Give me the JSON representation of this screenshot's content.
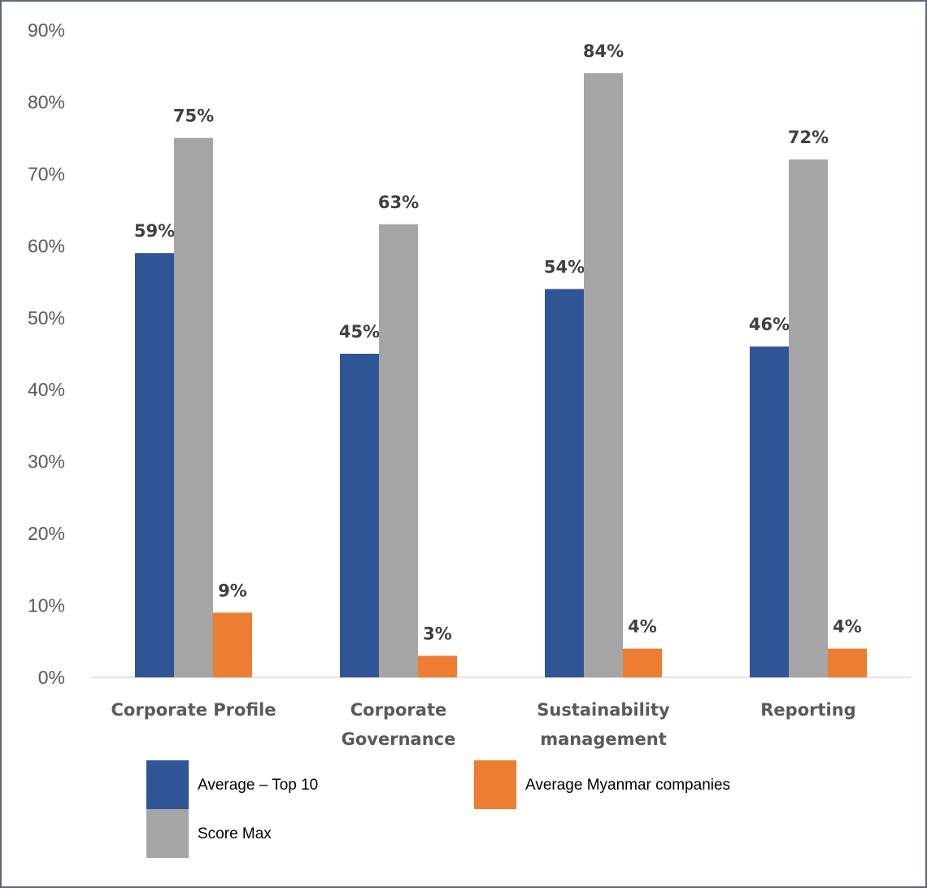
{
  "chart_data": {
    "type": "bar",
    "title": "",
    "xlabel": "",
    "ylabel": "",
    "ylim": [
      0,
      90
    ],
    "yticks": [
      "0%",
      "10%",
      "20%",
      "30%",
      "40%",
      "50%",
      "60%",
      "70%",
      "80%",
      "90%"
    ],
    "categories": [
      [
        "Corporate Profile"
      ],
      [
        "Corporate",
        "Governance"
      ],
      [
        "Sustainability",
        "management"
      ],
      [
        "Reporting"
      ]
    ],
    "series": [
      {
        "name": "Average – Top 10",
        "color": "#2f5597",
        "values": [
          59,
          45,
          54,
          46
        ],
        "labels": [
          "59%",
          "45%",
          "54%",
          "46%"
        ]
      },
      {
        "name": "Score Max",
        "color": "#a5a5a5",
        "values": [
          75,
          63,
          84,
          72
        ],
        "labels": [
          "75%",
          "63%",
          "84%",
          "72%"
        ]
      },
      {
        "name": "Average Myanmar companies",
        "color": "#ed7d31",
        "values": [
          9,
          3,
          4,
          4
        ],
        "labels": [
          "9%",
          "3%",
          "4%",
          "4%"
        ]
      }
    ],
    "grid": false,
    "legend_position": "bottom"
  }
}
